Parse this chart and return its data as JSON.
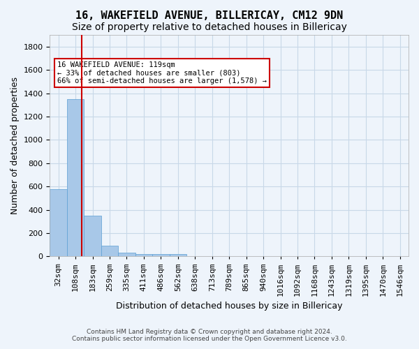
{
  "title": "16, WAKEFIELD AVENUE, BILLERICAY, CM12 9DN",
  "subtitle": "Size of property relative to detached houses in Billericay",
  "xlabel": "Distribution of detached houses by size in Billericay",
  "ylabel": "Number of detached properties",
  "footer_line1": "Contains HM Land Registry data © Crown copyright and database right 2024.",
  "footer_line2": "Contains public sector information licensed under the Open Government Licence v3.0.",
  "bin_labels": [
    "32sqm",
    "108sqm",
    "183sqm",
    "259sqm",
    "335sqm",
    "411sqm",
    "486sqm",
    "562sqm",
    "638sqm",
    "713sqm",
    "789sqm",
    "865sqm",
    "940sqm",
    "1016sqm",
    "1092sqm",
    "1168sqm",
    "1243sqm",
    "1319sqm",
    "1395sqm",
    "1470sqm",
    "1546sqm"
  ],
  "bar_values": [
    580,
    1350,
    350,
    95,
    30,
    20,
    20,
    20,
    0,
    0,
    0,
    0,
    0,
    0,
    0,
    0,
    0,
    0,
    0,
    0,
    0
  ],
  "bar_color": "#a8c8e8",
  "bar_edge_color": "#5a9fd4",
  "grid_color": "#c8d8e8",
  "background_color": "#eef4fb",
  "vline_x": 1.37,
  "vline_color": "#cc0000",
  "ylim": [
    0,
    1900
  ],
  "yticks": [
    0,
    200,
    400,
    600,
    800,
    1000,
    1200,
    1400,
    1600,
    1800
  ],
  "annotation_text": "16 WAKEFIELD AVENUE: 119sqm\n← 33% of detached houses are smaller (803)\n66% of semi-detached houses are larger (1,578) →",
  "annotation_box_color": "#ffffff",
  "annotation_border_color": "#cc0000",
  "title_fontsize": 11,
  "subtitle_fontsize": 10,
  "axis_fontsize": 9,
  "tick_fontsize": 8
}
